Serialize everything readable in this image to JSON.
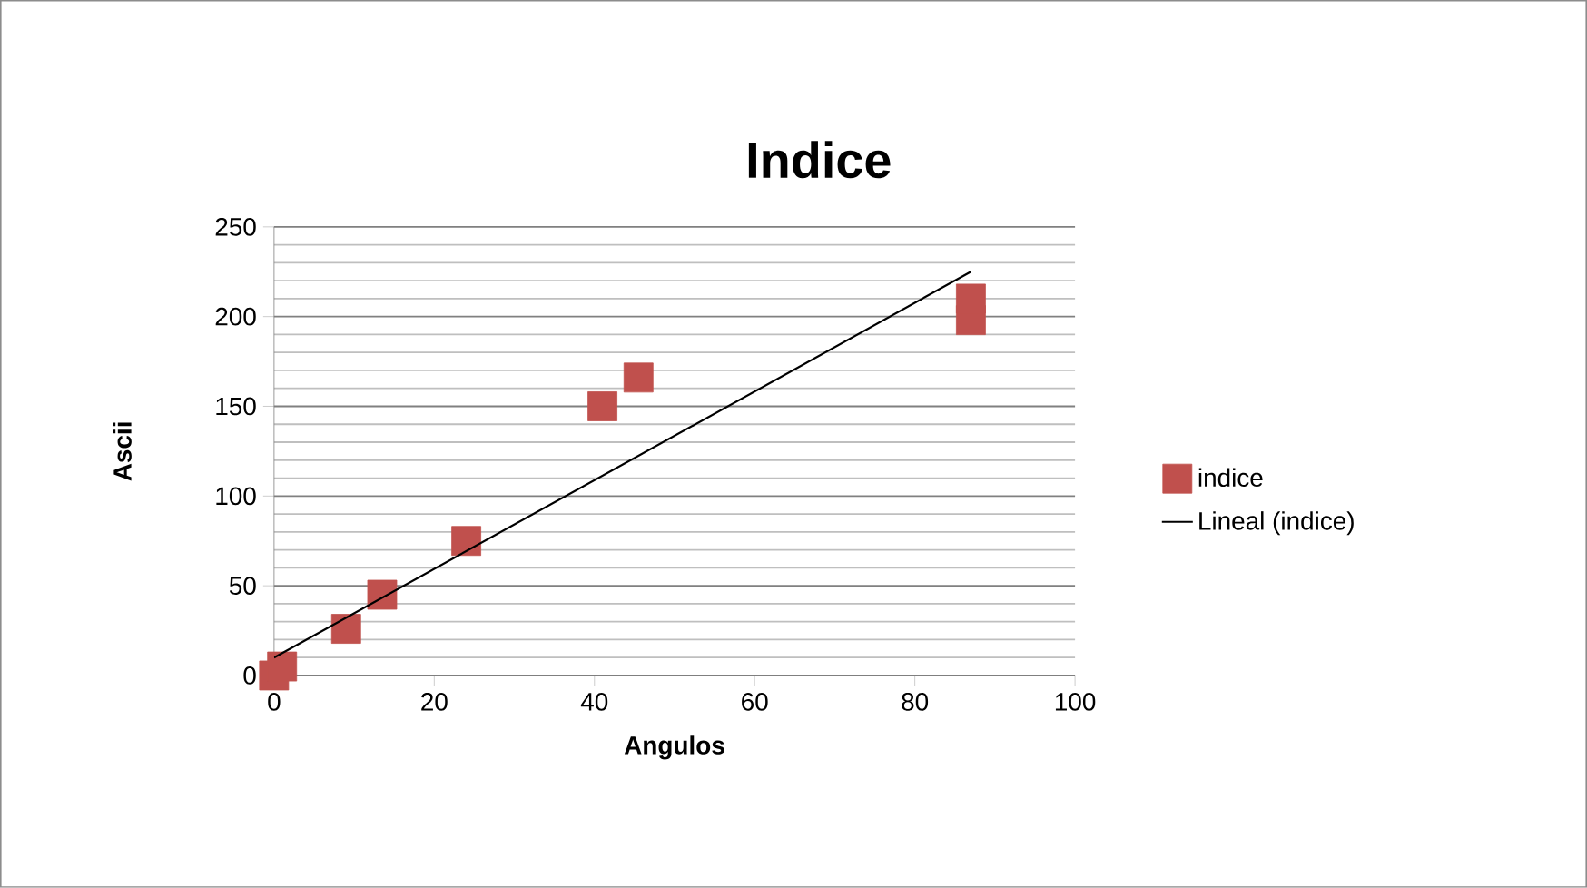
{
  "chart_data": {
    "type": "scatter",
    "title": "Indice",
    "xlabel": "Angulos",
    "ylabel": "Ascii",
    "series": [
      {
        "name": "indice",
        "color": "#c0504d",
        "marker": "square",
        "x": [
          0,
          1,
          9,
          13.5,
          24,
          41,
          45.5,
          87,
          87
        ],
        "values": [
          0,
          5,
          26,
          45,
          75,
          150,
          166,
          198,
          210
        ]
      },
      {
        "name": "Lineal (indice)",
        "type": "line",
        "color": "#000000",
        "marker": "none",
        "line_style": "solid",
        "x": [
          0,
          87
        ],
        "values": [
          10,
          225
        ]
      }
    ],
    "xlim": [
      0,
      100
    ],
    "ylim": [
      0,
      250
    ],
    "xticks": [
      0,
      20,
      40,
      60,
      80,
      100
    ],
    "yticks": [
      0,
      50,
      100,
      150,
      200,
      250
    ],
    "grid": "y",
    "legend": "right"
  }
}
